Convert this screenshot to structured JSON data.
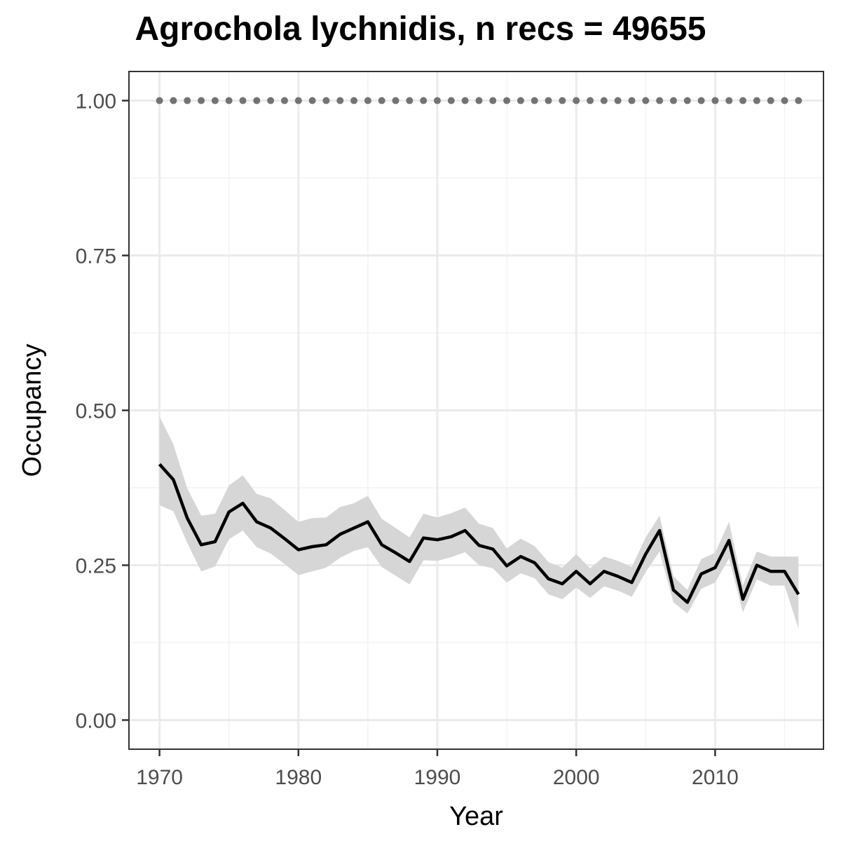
{
  "chart_data": {
    "type": "line",
    "title": "Agrochola lychnidis, n recs = 49655",
    "xlabel": "Year",
    "ylabel": "Occupancy",
    "xlim": [
      1967.8,
      2017.8
    ],
    "ylim": [
      -0.047,
      1.047
    ],
    "x_ticks": [
      1970,
      1980,
      1990,
      2000,
      2010
    ],
    "x_tick_labels": [
      "1970",
      "1980",
      "1990",
      "2000",
      "2010"
    ],
    "y_ticks": [
      0,
      0.25,
      0.5,
      0.75,
      1.0
    ],
    "y_tick_labels": [
      "0.00",
      "0.25",
      "0.50",
      "0.75",
      "1.00"
    ],
    "grid": true,
    "x": [
      1970,
      1971,
      1972,
      1973,
      1974,
      1975,
      1976,
      1977,
      1978,
      1979,
      1980,
      1981,
      1982,
      1983,
      1984,
      1985,
      1986,
      1987,
      1988,
      1989,
      1990,
      1991,
      1992,
      1993,
      1994,
      1995,
      1996,
      1997,
      1998,
      1999,
      2000,
      2001,
      2002,
      2003,
      2004,
      2005,
      2006,
      2007,
      2008,
      2009,
      2010,
      2011,
      2012,
      2013,
      2014,
      2015,
      2016
    ],
    "series": [
      {
        "values": [
          0.413,
          0.388,
          0.326,
          0.283,
          0.288,
          0.336,
          0.35,
          0.32,
          0.31,
          0.293,
          0.275,
          0.28,
          0.283,
          0.3,
          0.31,
          0.32,
          0.283,
          0.27,
          0.256,
          0.294,
          0.291,
          0.296,
          0.306,
          0.282,
          0.276,
          0.249,
          0.264,
          0.254,
          0.228,
          0.22,
          0.24,
          0.22,
          0.24,
          0.232,
          0.222,
          0.268,
          0.306,
          0.21,
          0.19,
          0.236,
          0.246,
          0.29,
          0.195,
          0.25,
          0.24,
          0.24,
          0.203
        ],
        "color": "#000000"
      },
      {
        "kind": "confidence-band",
        "lower": [
          0.347,
          0.337,
          0.286,
          0.24,
          0.248,
          0.292,
          0.306,
          0.279,
          0.269,
          0.252,
          0.234,
          0.24,
          0.246,
          0.262,
          0.273,
          0.279,
          0.247,
          0.233,
          0.219,
          0.258,
          0.257,
          0.263,
          0.271,
          0.25,
          0.245,
          0.222,
          0.237,
          0.229,
          0.203,
          0.195,
          0.214,
          0.197,
          0.216,
          0.209,
          0.199,
          0.239,
          0.272,
          0.19,
          0.172,
          0.212,
          0.222,
          0.261,
          0.174,
          0.227,
          0.217,
          0.217,
          0.148
        ],
        "upper": [
          0.49,
          0.445,
          0.374,
          0.33,
          0.333,
          0.379,
          0.395,
          0.365,
          0.358,
          0.339,
          0.32,
          0.326,
          0.327,
          0.344,
          0.35,
          0.362,
          0.325,
          0.31,
          0.295,
          0.333,
          0.327,
          0.334,
          0.343,
          0.317,
          0.31,
          0.277,
          0.293,
          0.281,
          0.255,
          0.246,
          0.268,
          0.245,
          0.264,
          0.257,
          0.247,
          0.295,
          0.33,
          0.232,
          0.21,
          0.26,
          0.27,
          0.32,
          0.217,
          0.272,
          0.264,
          0.264,
          0.264
        ],
        "color": "#d6d6d6"
      },
      {
        "kind": "points",
        "values": [
          1,
          1,
          1,
          1,
          1,
          1,
          1,
          1,
          1,
          1,
          1,
          1,
          1,
          1,
          1,
          1,
          1,
          1,
          1,
          1,
          1,
          1,
          1,
          1,
          1,
          1,
          1,
          1,
          1,
          1,
          1,
          1,
          1,
          1,
          1,
          1,
          1,
          1,
          1,
          1,
          1,
          1,
          1,
          1,
          1,
          1,
          1
        ],
        "color": "#737373"
      }
    ]
  },
  "colors": {
    "panel_border": "#333333",
    "grid_major": "#ebebeb",
    "grid_minor": "#f3f3f3",
    "tick_mark": "#333333"
  }
}
